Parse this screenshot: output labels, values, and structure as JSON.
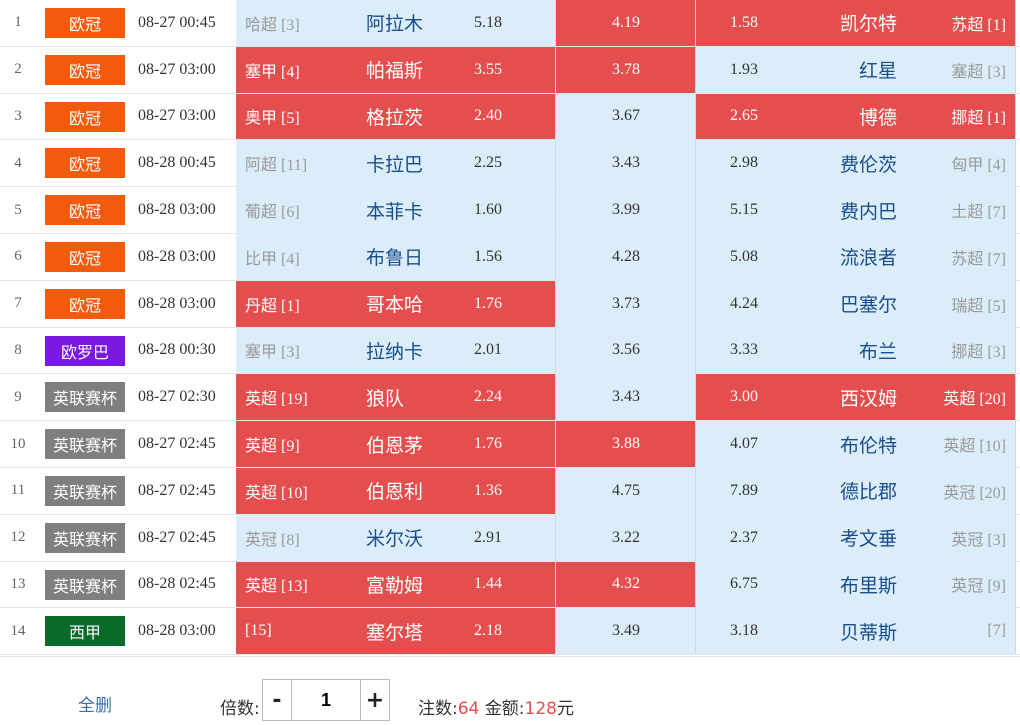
{
  "colors": {
    "selected": "#e54e4e",
    "unselected": "#dcedfa",
    "league_ucl": "#f25a0c",
    "league_uel": "#7a1adf",
    "league_efl": "#7f7f7f",
    "league_laliga": "#0a6a2a"
  },
  "matches": [
    {
      "idx": "1",
      "league": "欧冠",
      "league_color": "#f25a0c",
      "time": "08-27 00:45",
      "home_rank": "哈超 [3]",
      "home": "阿拉木",
      "home_odd": "5.18",
      "draw_odd": "4.19",
      "away_odd": "1.58",
      "away": "凯尔特",
      "away_rank": "苏超 [1]",
      "sel": [
        false,
        true,
        true
      ]
    },
    {
      "idx": "2",
      "league": "欧冠",
      "league_color": "#f25a0c",
      "time": "08-27 03:00",
      "home_rank": "塞甲 [4]",
      "home": "帕福斯",
      "home_odd": "3.55",
      "draw_odd": "3.78",
      "away_odd": "1.93",
      "away": "红星",
      "away_rank": "塞超 [3]",
      "sel": [
        true,
        true,
        false
      ]
    },
    {
      "idx": "3",
      "league": "欧冠",
      "league_color": "#f25a0c",
      "time": "08-27 03:00",
      "home_rank": "奥甲 [5]",
      "home": "格拉茨",
      "home_odd": "2.40",
      "draw_odd": "3.67",
      "away_odd": "2.65",
      "away": "博德",
      "away_rank": "挪超 [1]",
      "sel": [
        true,
        false,
        true
      ]
    },
    {
      "idx": "4",
      "league": "欧冠",
      "league_color": "#f25a0c",
      "time": "08-28 00:45",
      "home_rank": "阿超 [11]",
      "home": "卡拉巴",
      "home_odd": "2.25",
      "draw_odd": "3.43",
      "away_odd": "2.98",
      "away": "费伦茨",
      "away_rank": "匈甲 [4]",
      "sel": [
        false,
        false,
        false
      ]
    },
    {
      "idx": "5",
      "league": "欧冠",
      "league_color": "#f25a0c",
      "time": "08-28 03:00",
      "home_rank": "葡超 [6]",
      "home": "本菲卡",
      "home_odd": "1.60",
      "draw_odd": "3.99",
      "away_odd": "5.15",
      "away": "费内巴",
      "away_rank": "土超 [7]",
      "sel": [
        false,
        false,
        false
      ]
    },
    {
      "idx": "6",
      "league": "欧冠",
      "league_color": "#f25a0c",
      "time": "08-28 03:00",
      "home_rank": "比甲 [4]",
      "home": "布鲁日",
      "home_odd": "1.56",
      "draw_odd": "4.28",
      "away_odd": "5.08",
      "away": "流浪者",
      "away_rank": "苏超 [7]",
      "sel": [
        false,
        false,
        false
      ]
    },
    {
      "idx": "7",
      "league": "欧冠",
      "league_color": "#f25a0c",
      "time": "08-28 03:00",
      "home_rank": "丹超 [1]",
      "home": "哥本哈",
      "home_odd": "1.76",
      "draw_odd": "3.73",
      "away_odd": "4.24",
      "away": "巴塞尔",
      "away_rank": "瑞超 [5]",
      "sel": [
        true,
        false,
        false
      ]
    },
    {
      "idx": "8",
      "league": "欧罗巴",
      "league_color": "#7a1adf",
      "time": "08-28 00:30",
      "home_rank": "塞甲 [3]",
      "home": "拉纳卡",
      "home_odd": "2.01",
      "draw_odd": "3.56",
      "away_odd": "3.33",
      "away": "布兰",
      "away_rank": "挪超 [3]",
      "sel": [
        false,
        false,
        false
      ]
    },
    {
      "idx": "9",
      "league": "英联赛杯",
      "league_color": "#7f7f7f",
      "time": "08-27 02:30",
      "home_rank": "英超 [19]",
      "home": "狼队",
      "home_odd": "2.24",
      "draw_odd": "3.43",
      "away_odd": "3.00",
      "away": "西汉姆",
      "away_rank": "英超 [20]",
      "sel": [
        true,
        false,
        true
      ]
    },
    {
      "idx": "10",
      "league": "英联赛杯",
      "league_color": "#7f7f7f",
      "time": "08-27 02:45",
      "home_rank": "英超 [9]",
      "home": "伯恩茅",
      "home_odd": "1.76",
      "draw_odd": "3.88",
      "away_odd": "4.07",
      "away": "布伦特",
      "away_rank": "英超 [10]",
      "sel": [
        true,
        true,
        false
      ]
    },
    {
      "idx": "11",
      "league": "英联赛杯",
      "league_color": "#7f7f7f",
      "time": "08-27 02:45",
      "home_rank": "英超 [10]",
      "home": "伯恩利",
      "home_odd": "1.36",
      "draw_odd": "4.75",
      "away_odd": "7.89",
      "away": "德比郡",
      "away_rank": "英冠 [20]",
      "sel": [
        true,
        false,
        false
      ]
    },
    {
      "idx": "12",
      "league": "英联赛杯",
      "league_color": "#7f7f7f",
      "time": "08-27 02:45",
      "home_rank": "英冠 [8]",
      "home": "米尔沃",
      "home_odd": "2.91",
      "draw_odd": "3.22",
      "away_odd": "2.37",
      "away": "考文垂",
      "away_rank": "英冠 [3]",
      "sel": [
        false,
        false,
        false
      ]
    },
    {
      "idx": "13",
      "league": "英联赛杯",
      "league_color": "#7f7f7f",
      "time": "08-28 02:45",
      "home_rank": "英超 [13]",
      "home": "富勒姆",
      "home_odd": "1.44",
      "draw_odd": "4.32",
      "away_odd": "6.75",
      "away": "布里斯",
      "away_rank": "英冠 [9]",
      "sel": [
        true,
        true,
        false
      ]
    },
    {
      "idx": "14",
      "league": "西甲",
      "league_color": "#0a6a2a",
      "time": "08-28 03:00",
      "home_rank": "[15]",
      "home": "塞尔塔",
      "home_odd": "2.18",
      "draw_odd": "3.49",
      "away_odd": "3.18",
      "away": "贝蒂斯",
      "away_rank": "[7]",
      "sel": [
        true,
        false,
        false
      ]
    }
  ],
  "footer": {
    "clear_all": "全删",
    "multiplier_label": "倍数:",
    "minus": "-",
    "plus": "+",
    "multiplier_value": "1",
    "bets_label": "注数:",
    "bets_value": "64",
    "amount_label": "金额:",
    "amount_value": "128",
    "amount_unit": "元"
  }
}
